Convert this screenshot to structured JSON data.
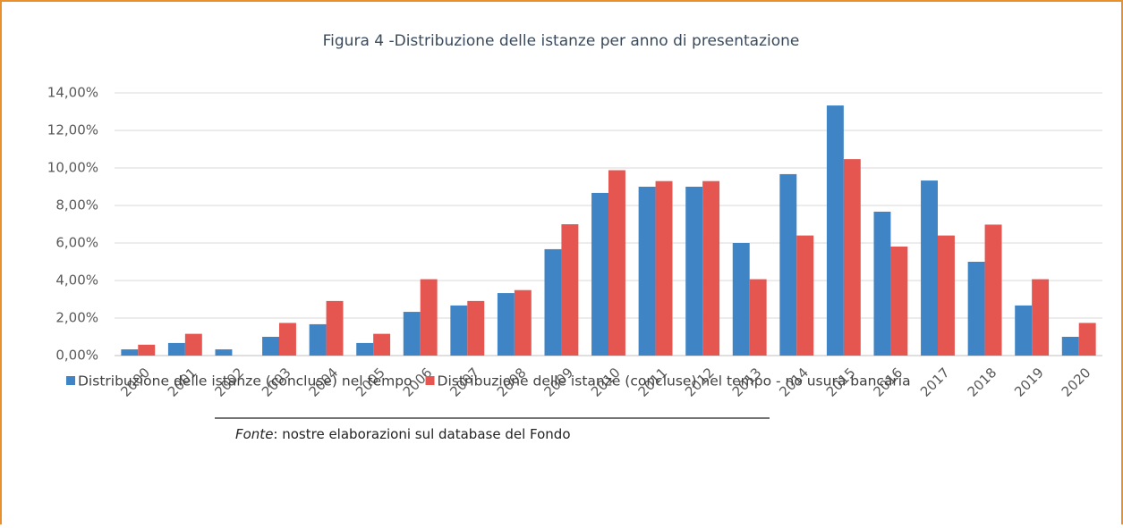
{
  "chart_data": {
    "type": "bar",
    "title": "Figura 4 -Distribuzione delle istanze per anno di presentazione",
    "categories": [
      "2000",
      "2001",
      "2002",
      "2003",
      "2004",
      "2005",
      "2006",
      "2007",
      "2008",
      "2009",
      "2010",
      "2011",
      "2012",
      "2013",
      "2014",
      "2015",
      "2016",
      "2017",
      "2018",
      "2019",
      "2020"
    ],
    "series": [
      {
        "name": "Distribuzione delle istanze (concluse) nel tempo",
        "color": "#3f84c4",
        "values": [
          0.33,
          0.67,
          0.33,
          1.0,
          1.67,
          0.67,
          2.33,
          2.67,
          3.33,
          5.67,
          8.67,
          9.0,
          9.0,
          6.0,
          9.67,
          13.33,
          7.67,
          9.33,
          5.0,
          2.67,
          1.0
        ]
      },
      {
        "name": "Distribuzione delle istanze (concluse) nel tempo - no usura bancaria",
        "color": "#e55650",
        "values": [
          0.58,
          1.16,
          0,
          1.74,
          2.91,
          1.16,
          4.07,
          2.91,
          3.49,
          7.0,
          9.88,
          9.3,
          9.3,
          4.07,
          6.4,
          10.47,
          5.81,
          6.4,
          6.98,
          4.07,
          1.74
        ]
      }
    ],
    "ylim": [
      0,
      14
    ],
    "yticks": [
      {
        "value": 0,
        "label": "0,00%"
      },
      {
        "value": 2,
        "label": "2,00%"
      },
      {
        "value": 4,
        "label": "4,00%"
      },
      {
        "value": 6,
        "label": "6,00%"
      },
      {
        "value": 8,
        "label": "8,00%"
      },
      {
        "value": 10,
        "label": "10,00%"
      },
      {
        "value": 12,
        "label": "12,00%"
      },
      {
        "value": 14,
        "label": "14,00%"
      }
    ],
    "grid": true,
    "legend": "bottom",
    "source_label": "Fonte",
    "source_text": ": nostre elaborazioni sul database del Fondo"
  }
}
